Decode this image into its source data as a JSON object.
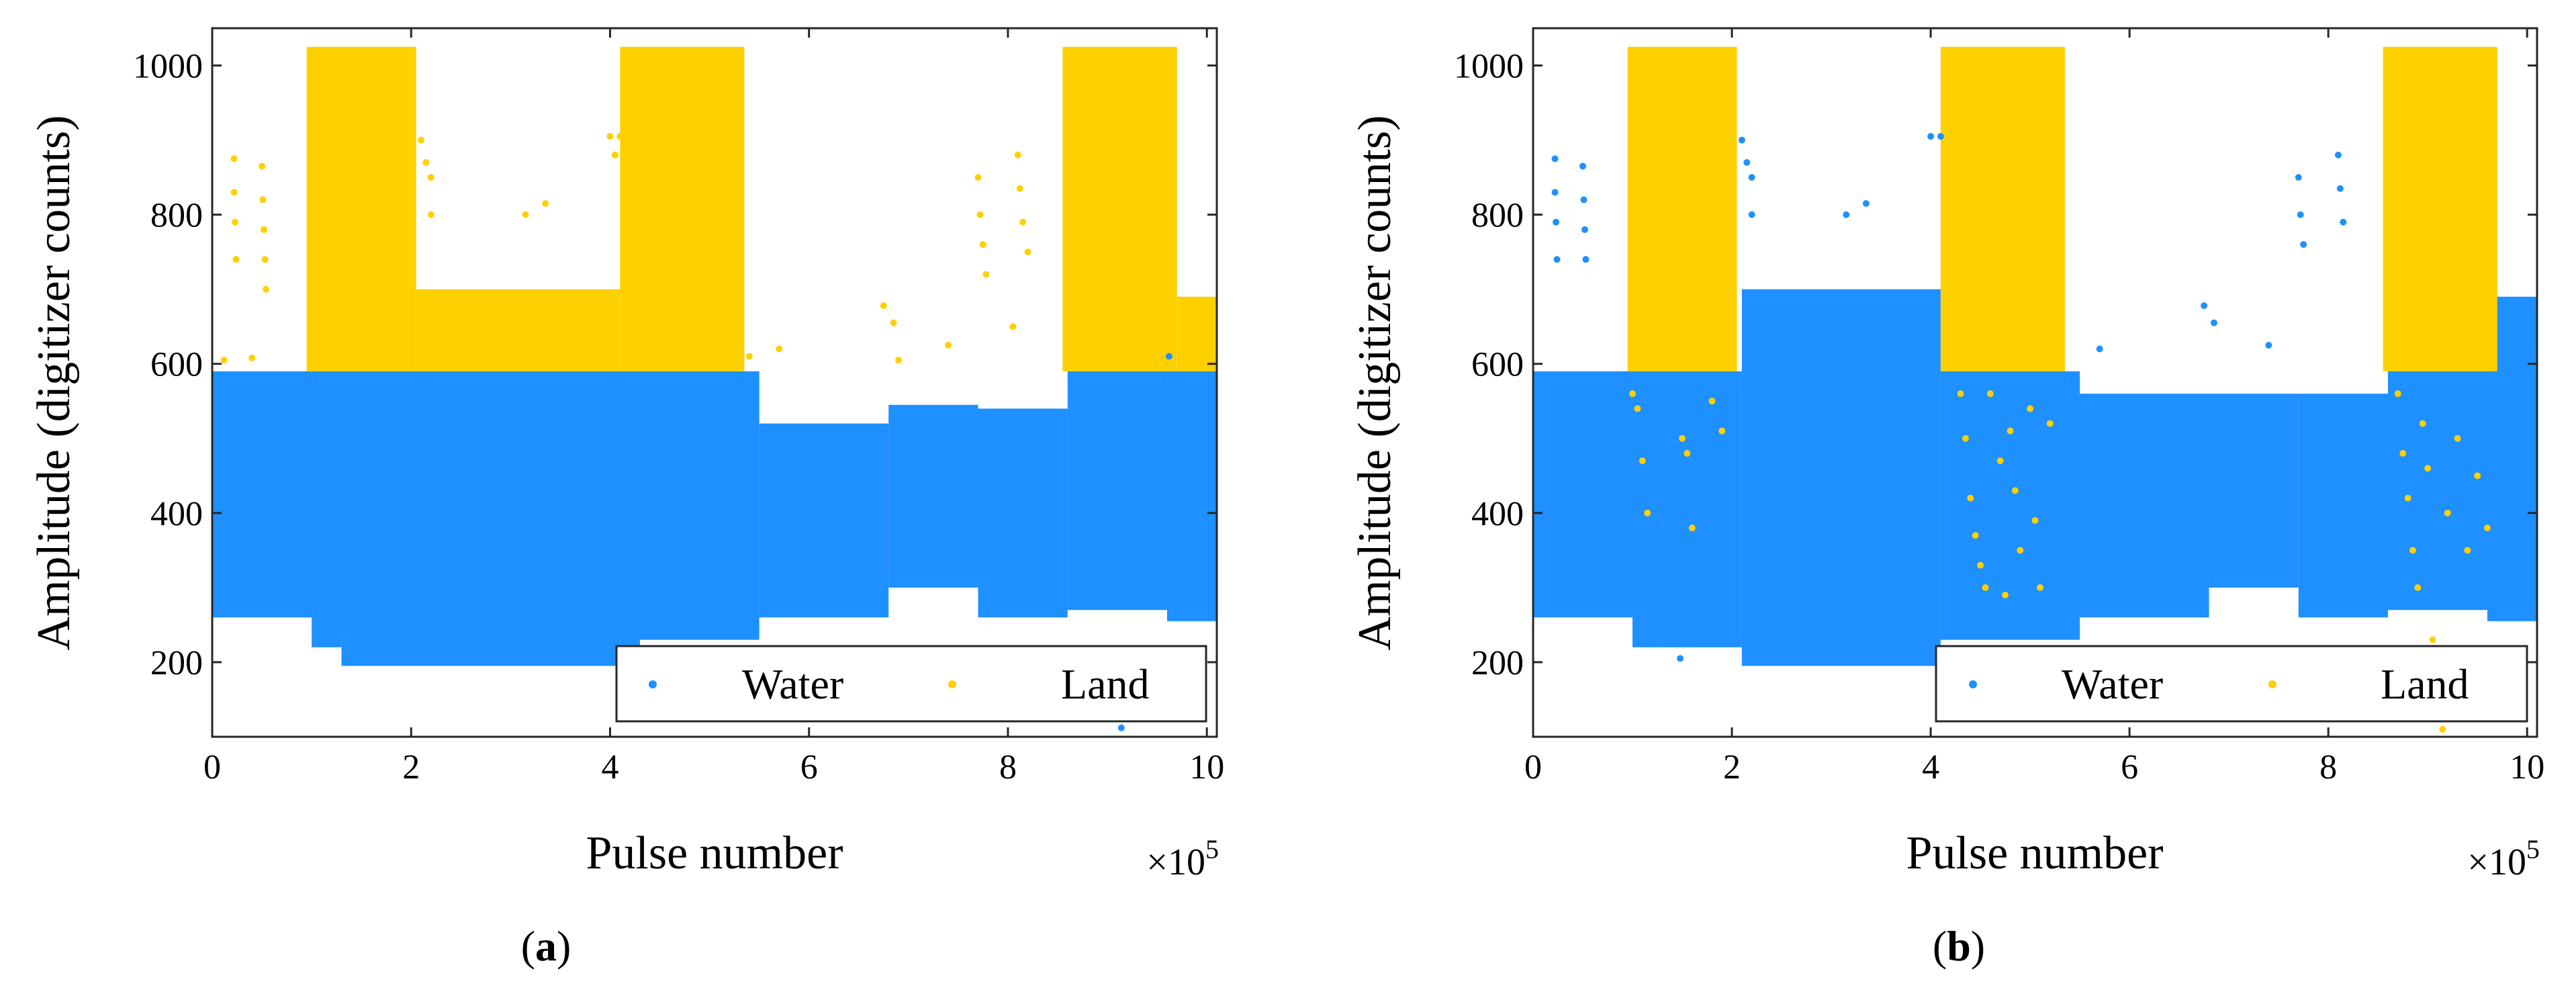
{
  "chart_data": [
    {
      "type": "scatter",
      "panel_label": "a",
      "xlabel": "Pulse number",
      "ylabel": "Amplitude (digitizer counts)",
      "x_exponent_base": "×10",
      "x_exponent_power": "5",
      "xlim": [
        0,
        10.1
      ],
      "ylim": [
        100,
        1050
      ],
      "xticks": [
        0,
        2,
        4,
        6,
        8,
        10
      ],
      "yticks": [
        200,
        400,
        600,
        800,
        1000
      ],
      "x_units": "1e5 pulses",
      "legend_position": "bottom-right",
      "colors": {
        "Water": "#1e90ff",
        "Land": "#ffd000"
      },
      "series": [
        {
          "name": "Water",
          "bands": [
            {
              "x": [
                0.0,
                1.0
              ],
              "lo": 260,
              "hi": 590
            },
            {
              "x": [
                1.0,
                1.3
              ],
              "lo": 220,
              "hi": 590
            },
            {
              "x": [
                1.3,
                4.3
              ],
              "lo": 195,
              "hi": 590
            },
            {
              "x": [
                4.3,
                5.5
              ],
              "lo": 230,
              "hi": 590
            },
            {
              "x": [
                5.5,
                6.8
              ],
              "lo": 260,
              "hi": 520
            },
            {
              "x": [
                6.8,
                7.7
              ],
              "lo": 300,
              "hi": 545
            },
            {
              "x": [
                7.7,
                8.6
              ],
              "lo": 260,
              "hi": 540
            },
            {
              "x": [
                8.6,
                9.6
              ],
              "lo": 270,
              "hi": 590
            },
            {
              "x": [
                9.6,
                10.1
              ],
              "lo": 255,
              "hi": 590
            }
          ],
          "outliers": [
            [
              1.48,
              205
            ],
            [
              9.14,
              112
            ],
            [
              9.62,
              610
            ],
            [
              0.03,
              575
            ]
          ]
        },
        {
          "name": "Land",
          "bands": [
            {
              "x": [
                0.95,
                2.05
              ],
              "lo": 590,
              "hi": 1025
            },
            {
              "x": [
                4.1,
                5.35
              ],
              "lo": 590,
              "hi": 1025
            },
            {
              "x": [
                8.55,
                9.7
              ],
              "lo": 590,
              "hi": 1025
            },
            {
              "x": [
                2.05,
                4.1
              ],
              "lo": 590,
              "hi": 700
            },
            {
              "x": [
                9.7,
                10.1
              ],
              "lo": 590,
              "hi": 690
            }
          ],
          "outliers": [
            [
              0.22,
              875
            ],
            [
              0.22,
              830
            ],
            [
              0.23,
              790
            ],
            [
              0.24,
              740
            ],
            [
              0.5,
              865
            ],
            [
              0.51,
              820
            ],
            [
              0.52,
              780
            ],
            [
              0.53,
              740
            ],
            [
              0.54,
              700
            ],
            [
              2.1,
              900
            ],
            [
              2.15,
              870
            ],
            [
              2.2,
              850
            ],
            [
              2.2,
              800
            ],
            [
              3.15,
              800
            ],
            [
              3.35,
              815
            ],
            [
              4.0,
              905
            ],
            [
              4.1,
              905
            ],
            [
              4.05,
              880
            ],
            [
              7.7,
              850
            ],
            [
              7.72,
              800
            ],
            [
              7.75,
              760
            ],
            [
              7.78,
              720
            ],
            [
              8.1,
              880
            ],
            [
              8.12,
              835
            ],
            [
              8.15,
              790
            ],
            [
              8.2,
              750
            ],
            [
              6.75,
              678
            ],
            [
              6.85,
              655
            ],
            [
              5.4,
              610
            ],
            [
              5.7,
              620
            ],
            [
              7.4,
              625
            ],
            [
              8.88,
              1020
            ],
            [
              0.12,
              605
            ],
            [
              0.4,
              608
            ],
            [
              6.9,
              605
            ],
            [
              8.05,
              650
            ]
          ]
        }
      ]
    },
    {
      "type": "scatter",
      "panel_label": "b",
      "xlabel": "Pulse number",
      "ylabel": "Amplitude (digitizer counts)",
      "x_exponent_base": "×10",
      "x_exponent_power": "5",
      "xlim": [
        0,
        10.1
      ],
      "ylim": [
        100,
        1050
      ],
      "xticks": [
        0,
        2,
        4,
        6,
        8,
        10
      ],
      "yticks": [
        200,
        400,
        600,
        800,
        1000
      ],
      "x_units": "1e5 pulses",
      "legend_position": "bottom-right",
      "colors": {
        "Water": "#1e90ff",
        "Land": "#ffd000"
      },
      "series": [
        {
          "name": "Water",
          "bands": [
            {
              "x": [
                0.0,
                1.0
              ],
              "lo": 260,
              "hi": 590
            },
            {
              "x": [
                1.0,
                1.3
              ],
              "lo": 220,
              "hi": 590
            },
            {
              "x": [
                1.3,
                2.1
              ],
              "lo": 220,
              "hi": 590
            },
            {
              "x": [
                2.1,
                4.1
              ],
              "lo": 195,
              "hi": 700
            },
            {
              "x": [
                4.1,
                5.5
              ],
              "lo": 230,
              "hi": 590
            },
            {
              "x": [
                5.5,
                6.8
              ],
              "lo": 260,
              "hi": 560
            },
            {
              "x": [
                6.8,
                7.7
              ],
              "lo": 300,
              "hi": 560
            },
            {
              "x": [
                7.7,
                8.6
              ],
              "lo": 260,
              "hi": 560
            },
            {
              "x": [
                8.6,
                9.6
              ],
              "lo": 270,
              "hi": 590
            },
            {
              "x": [
                9.6,
                10.1
              ],
              "lo": 255,
              "hi": 690
            }
          ],
          "outliers": [
            [
              0.22,
              875
            ],
            [
              0.22,
              830
            ],
            [
              0.23,
              790
            ],
            [
              0.24,
              740
            ],
            [
              0.5,
              865
            ],
            [
              0.51,
              820
            ],
            [
              0.52,
              780
            ],
            [
              0.53,
              740
            ],
            [
              2.1,
              900
            ],
            [
              2.15,
              870
            ],
            [
              2.2,
              850
            ],
            [
              2.2,
              800
            ],
            [
              3.15,
              800
            ],
            [
              3.35,
              815
            ],
            [
              4.0,
              905
            ],
            [
              4.1,
              905
            ],
            [
              7.7,
              850
            ],
            [
              7.72,
              800
            ],
            [
              7.75,
              760
            ],
            [
              8.1,
              880
            ],
            [
              8.12,
              835
            ],
            [
              8.15,
              790
            ],
            [
              1.48,
              205
            ],
            [
              6.75,
              678
            ],
            [
              6.85,
              655
            ],
            [
              5.7,
              620
            ],
            [
              7.4,
              625
            ]
          ]
        },
        {
          "name": "Land",
          "bands": [
            {
              "x": [
                0.95,
                2.05
              ],
              "lo": 590,
              "hi": 1025
            },
            {
              "x": [
                4.1,
                5.35
              ],
              "lo": 590,
              "hi": 1025
            },
            {
              "x": [
                8.55,
                9.7
              ],
              "lo": 590,
              "hi": 1025
            }
          ],
          "outliers": [
            [
              1.0,
              560
            ],
            [
              1.05,
              540
            ],
            [
              1.1,
              470
            ],
            [
              1.15,
              400
            ],
            [
              1.5,
              500
            ],
            [
              1.55,
              480
            ],
            [
              1.6,
              380
            ],
            [
              1.8,
              550
            ],
            [
              1.9,
              510
            ],
            [
              2.0,
              620
            ],
            [
              4.3,
              560
            ],
            [
              4.35,
              500
            ],
            [
              4.4,
              420
            ],
            [
              4.45,
              370
            ],
            [
              4.5,
              330
            ],
            [
              4.55,
              300
            ],
            [
              4.6,
              560
            ],
            [
              4.7,
              470
            ],
            [
              4.75,
              290
            ],
            [
              4.8,
              510
            ],
            [
              4.85,
              430
            ],
            [
              4.9,
              350
            ],
            [
              5.0,
              540
            ],
            [
              5.05,
              390
            ],
            [
              5.1,
              300
            ],
            [
              5.2,
              520
            ],
            [
              8.7,
              560
            ],
            [
              8.75,
              480
            ],
            [
              8.8,
              420
            ],
            [
              8.85,
              350
            ],
            [
              8.9,
              300
            ],
            [
              8.95,
              520
            ],
            [
              9.0,
              460
            ],
            [
              9.05,
              230
            ],
            [
              9.1,
              180
            ],
            [
              9.15,
              110
            ],
            [
              9.2,
              400
            ],
            [
              9.3,
              500
            ],
            [
              9.4,
              350
            ],
            [
              9.5,
              450
            ],
            [
              9.6,
              380
            ],
            [
              8.88,
              1020
            ]
          ]
        }
      ]
    }
  ]
}
